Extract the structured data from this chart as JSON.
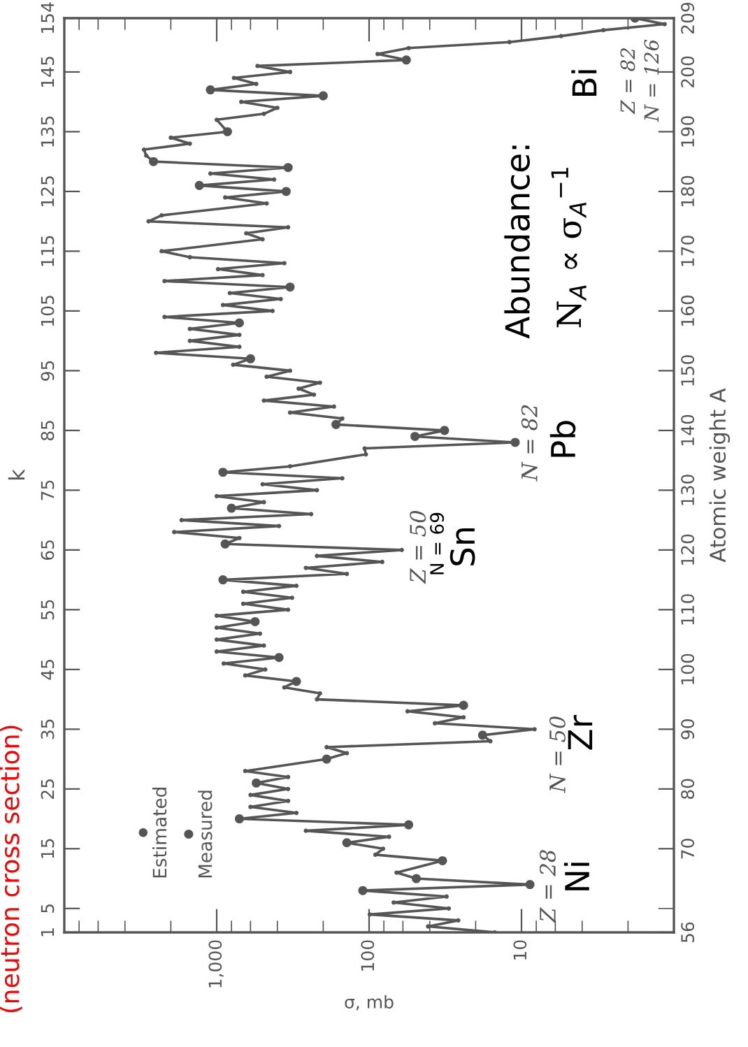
{
  "chart_data": {
    "type": "line",
    "xlabel": "σ, mb",
    "ylabel": "Atomic weight A",
    "y2label": "k",
    "log": "x",
    "xlim": [
      10000,
      1
    ],
    "xticks": [
      {
        "value": 8000,
        "label": null
      },
      {
        "value": 6000,
        "label": null
      },
      {
        "value": 4000,
        "label": null
      },
      {
        "value": 2000,
        "label": null
      },
      {
        "value": 1000,
        "label": "1,000"
      },
      {
        "value": 800,
        "label": null
      },
      {
        "value": 600,
        "label": null
      },
      {
        "value": 400,
        "label": null
      },
      {
        "value": 200,
        "label": null
      },
      100,
      {
        "value": 80,
        "label": null
      },
      {
        "value": 60,
        "label": null
      },
      {
        "value": 40,
        "label": null
      },
      {
        "value": 20,
        "label": null
      },
      10,
      {
        "value": 8,
        "label": null
      },
      {
        "value": 6,
        "label": null
      },
      {
        "value": 4,
        "label": null
      },
      {
        "value": 2,
        "label": null
      }
    ],
    "ylim": [
      56,
      209
    ],
    "yticks": [
      56,
      {
        "value": 60,
        "label": null
      },
      70,
      80,
      90,
      100,
      110,
      120,
      130,
      140,
      150,
      160,
      170,
      180,
      190,
      200,
      209
    ],
    "y2lim": [
      1,
      154
    ],
    "y2ticks": [
      1,
      5,
      15,
      25,
      35,
      45,
      55,
      65,
      75,
      85,
      95,
      105,
      115,
      125,
      135,
      145,
      154
    ],
    "legend": "bottom left",
    "series": [
      {
        "color": "#555555",
        "marker": "none",
        "line_style": "solid",
        "values": [
          56,
          57,
          58,
          59,
          60,
          61,
          62,
          63,
          64,
          65,
          66,
          68,
          69,
          70,
          71,
          72,
          73,
          74,
          75,
          76,
          77,
          78,
          79,
          80,
          81,
          82,
          83,
          85,
          86,
          87,
          88,
          89,
          90,
          91,
          92,
          93,
          94,
          95,
          96,
          97,
          98,
          99,
          100,
          101,
          102,
          103,
          104,
          105,
          106,
          107,
          108,
          109,
          110,
          111,
          112,
          113,
          114,
          115,
          116,
          117,
          118,
          119,
          120,
          121,
          122,
          123,
          124,
          125,
          126,
          127,
          128,
          129,
          130,
          131,
          132,
          133,
          134,
          136,
          137,
          138,
          139,
          140,
          141,
          142,
          143,
          144,
          145,
          146,
          147,
          148,
          149,
          150,
          151,
          152,
          153,
          154,
          155,
          156,
          157,
          158,
          159,
          160,
          161,
          162,
          163,
          164,
          165,
          166,
          167,
          168,
          169,
          170,
          172,
          173,
          174,
          175,
          176,
          178,
          179,
          180,
          181,
          182,
          183,
          184,
          185,
          186,
          187,
          188,
          189,
          190,
          192,
          193,
          194,
          195,
          196,
          197,
          198,
          199,
          200,
          201,
          202,
          203,
          204,
          205,
          206,
          207,
          208,
          209
        ],
        "x": [
          15,
          41,
          26,
          99,
          30,
          69,
          31,
          110,
          8.8,
          49,
          66,
          33,
          91,
          81,
          140,
          74,
          260,
          55,
          710,
          300,
          600,
          340,
          600,
          340,
          550,
          340,
          650,
          190,
          140,
          190,
          16,
          18,
          8.2,
          37,
          24,
          56,
          24,
          220,
          210,
          360,
          300,
          650,
          480,
          900,
          390,
          1000,
          490,
          1000,
          520,
          1000,
          560,
          1000,
          340,
          670,
          320,
          670,
          300,
          910,
          140,
          260,
          82,
          220,
          61,
          880,
          710,
          1900,
          390,
          1700,
          240,
          800,
          490,
          1000,
          220,
          500,
          150,
          910,
          330,
          105,
          107,
          11,
          50,
          32,
          165,
          150,
          330,
          170,
          490,
          230,
          290,
          210,
          470,
          330,
          780,
          600,
          2500,
          710,
          1500,
          710,
          1500,
          710,
          2200,
          430,
          910,
          380,
          820,
          330,
          2200,
          500,
          980,
          360,
          1500,
          2300,
          500,
          640,
          340,
          2800,
          2300,
          470,
          880,
          350,
          1300,
          420,
          1100,
          340,
          2600,
          2900,
          3000,
          1500,
          2000,
          850,
          1000,
          490,
          400,
          690,
          200,
          1100,
          550,
          770,
          330,
          540,
          57,
          88,
          55,
          12,
          5.5,
          2.9,
          1.15,
          1.8
        ]
      },
      {
        "type": "scatter",
        "name": "Estimated",
        "color": "#555555",
        "marker": "circle",
        "values": [
          56,
          57,
          58,
          59,
          60,
          61,
          62,
          66,
          69,
          70,
          72,
          73,
          76,
          77,
          78,
          79,
          80,
          82,
          83,
          86,
          87,
          88,
          90,
          91,
          92,
          93,
          95,
          96,
          97,
          99,
          100,
          101,
          103,
          104,
          105,
          106,
          107,
          109,
          110,
          111,
          112,
          113,
          114,
          116,
          117,
          118,
          119,
          120,
          122,
          123,
          124,
          125,
          126,
          128,
          129,
          130,
          131,
          132,
          134,
          136,
          137,
          142,
          143,
          144,
          145,
          146,
          147,
          148,
          149,
          150,
          151,
          153,
          154,
          155,
          156,
          157,
          159,
          160,
          161,
          162,
          163,
          165,
          166,
          167,
          168,
          169,
          170,
          172,
          173,
          174,
          175,
          176,
          178,
          179,
          182,
          183,
          186,
          187,
          188,
          189,
          192,
          193,
          194,
          195,
          198,
          199,
          200,
          201,
          203,
          204,
          205,
          206,
          207,
          208
        ],
        "x": [
          15,
          41,
          26,
          99,
          30,
          69,
          31,
          66,
          91,
          81,
          74,
          260,
          300,
          600,
          340,
          600,
          340,
          340,
          650,
          140,
          190,
          16,
          8.2,
          37,
          24,
          56,
          220,
          210,
          360,
          650,
          480,
          900,
          1000,
          490,
          1000,
          520,
          1000,
          1000,
          340,
          670,
          320,
          670,
          300,
          140,
          260,
          82,
          220,
          61,
          710,
          1900,
          390,
          1700,
          240,
          490,
          1000,
          220,
          500,
          150,
          330,
          105,
          107,
          150,
          330,
          170,
          490,
          230,
          290,
          210,
          470,
          330,
          780,
          2500,
          710,
          1500,
          710,
          1500,
          2200,
          430,
          910,
          380,
          820,
          2200,
          500,
          980,
          360,
          1500,
          2300,
          500,
          640,
          340,
          2800,
          2300,
          470,
          880,
          420,
          1100,
          2900,
          3000,
          1500,
          2000,
          1000,
          490,
          400,
          690,
          550,
          770,
          330,
          540,
          88,
          55,
          12,
          5.5,
          2.9,
          1.15
        ]
      },
      {
        "type": "scatter",
        "name": "Measured",
        "color": "#555555",
        "marker": "circle",
        "values": [
          63,
          64,
          65,
          68,
          71,
          74,
          75,
          81,
          85,
          89,
          94,
          98,
          102,
          108,
          115,
          121,
          127,
          133,
          138,
          139,
          140,
          141,
          152,
          158,
          164,
          180,
          181,
          184,
          185,
          190,
          196,
          197,
          202,
          209
        ],
        "x": [
          110,
          8.8,
          49,
          33,
          140,
          55,
          710,
          550,
          190,
          18,
          24,
          300,
          390,
          560,
          910,
          880,
          800,
          910,
          11,
          50,
          32,
          165,
          600,
          710,
          330,
          350,
          1300,
          340,
          2600,
          850,
          200,
          1100,
          57,
          1.8
        ]
      }
    ],
    "annotations": [
      "Z = 28",
      "Ni",
      "N = 50",
      "Zr",
      "Z = 50",
      "N = 69",
      "Sn",
      "N = 82",
      "Pb",
      "Abundance:",
      "N$_{A}$ ∝ σ$_{A}$$^{−1}$",
      "Bi",
      "Z = 82",
      "N = 126",
      "(neutron cross section)"
    ]
  }
}
